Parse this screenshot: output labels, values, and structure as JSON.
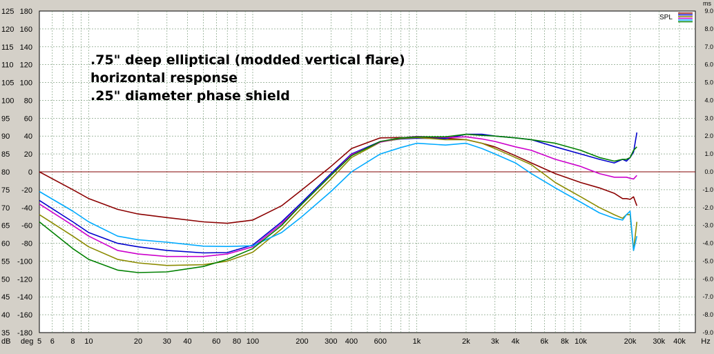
{
  "chart_data": {
    "type": "line",
    "title": "",
    "annotations": [
      ".75\" deep elliptical (modded vertical flare)",
      "horizontal response",
      ".25\" diameter phase shield"
    ],
    "legend": {
      "label": "SPL",
      "placement": "top-right"
    },
    "x_axis": {
      "scale": "log",
      "unit": "Hz",
      "range": [
        5,
        50000
      ],
      "ticks": [
        {
          "v": 5,
          "t": "5"
        },
        {
          "v": 6,
          "t": "6"
        },
        {
          "v": 8,
          "t": "8"
        },
        {
          "v": 10,
          "t": "10"
        },
        {
          "v": 20,
          "t": "20"
        },
        {
          "v": 30,
          "t": "30"
        },
        {
          "v": 40,
          "t": "40"
        },
        {
          "v": 60,
          "t": "60"
        },
        {
          "v": 80,
          "t": "80"
        },
        {
          "v": 100,
          "t": "100"
        },
        {
          "v": 200,
          "t": "200"
        },
        {
          "v": 300,
          "t": "300"
        },
        {
          "v": 400,
          "t": "400"
        },
        {
          "v": 600,
          "t": "600"
        },
        {
          "v": 1000,
          "t": "1k"
        },
        {
          "v": 2000,
          "t": "2k"
        },
        {
          "v": 3000,
          "t": "3k"
        },
        {
          "v": 4000,
          "t": "4k"
        },
        {
          "v": 6000,
          "t": "6k"
        },
        {
          "v": 8000,
          "t": "8k"
        },
        {
          "v": 10000,
          "t": "10k"
        },
        {
          "v": 20000,
          "t": "20k"
        },
        {
          "v": 30000,
          "t": "30k"
        },
        {
          "v": 40000,
          "t": "40k"
        }
      ]
    },
    "y_axis_db": {
      "unit": "dB",
      "range": [
        35,
        125
      ],
      "ticks": [
        125,
        120,
        115,
        110,
        105,
        100,
        95,
        90,
        85,
        80,
        75,
        70,
        65,
        60,
        55,
        50,
        45,
        40,
        35
      ]
    },
    "y_axis_deg": {
      "unit": "deg",
      "ticks": [
        "180",
        "160",
        "140",
        "120",
        "100",
        "80",
        "60",
        "40",
        "20",
        "0",
        "-20",
        "-40",
        "-60",
        "-80",
        "-100",
        "-120",
        "-140",
        "-160",
        "-180"
      ]
    },
    "y_axis_ms": {
      "unit": "ms",
      "ticks": [
        "9.0",
        "8.0",
        "7.0",
        "6.0",
        "5.0",
        "4.0",
        "3.0",
        "2.0",
        "1.0",
        "0.0",
        "-1.0",
        "-2.0",
        "-3.0",
        "-4.0",
        "-5.0",
        "-6.0",
        "-7.0",
        "-8.0",
        "-9.0"
      ]
    },
    "grid": true,
    "reference_line_db": 80,
    "series": [
      {
        "color": "#8b0000",
        "x": [
          5,
          8,
          10,
          15,
          20,
          30,
          50,
          70,
          100,
          150,
          200,
          300,
          400,
          600,
          800,
          1000,
          1500,
          2000,
          2500,
          3000,
          4000,
          5000,
          7000,
          10000,
          13000,
          16000,
          18000,
          19000,
          20000,
          21000,
          22000
        ],
        "y": [
          80,
          75,
          72.5,
          69.5,
          68.2,
          67.2,
          66,
          65.6,
          66.5,
          70.5,
          75,
          81.5,
          86.5,
          89.5,
          89.6,
          89.6,
          89.4,
          89,
          88,
          87,
          84.5,
          82.5,
          79.5,
          77,
          75.5,
          74,
          72.5,
          72.5,
          72.3,
          73,
          70.5
        ]
      },
      {
        "color": "#0000cc",
        "x": [
          5,
          8,
          10,
          15,
          20,
          30,
          50,
          70,
          100,
          150,
          200,
          300,
          400,
          600,
          800,
          1000,
          1500,
          2000,
          2500,
          3000,
          4000,
          5000,
          7000,
          10000,
          13000,
          16000,
          18000,
          19000,
          20000,
          21000,
          22000
        ],
        "y": [
          72,
          66,
          63,
          60,
          59,
          58,
          57.3,
          57.4,
          59.5,
          66,
          71.5,
          79.5,
          85,
          88.5,
          89.2,
          89.4,
          89.3,
          90.5,
          90.5,
          90,
          89.5,
          89,
          87,
          85,
          83.5,
          82.5,
          83.5,
          83,
          84,
          85.5,
          91
        ]
      },
      {
        "color": "#8b8b00",
        "x": [
          5,
          8,
          10,
          15,
          20,
          30,
          50,
          70,
          100,
          150,
          200,
          300,
          400,
          600,
          800,
          1000,
          1500,
          2000,
          2500,
          3000,
          4000,
          5000,
          7000,
          10000,
          13000,
          16000,
          18000,
          19000,
          20000,
          21000,
          22000
        ],
        "y": [
          68,
          62,
          59,
          55.5,
          54.5,
          53.8,
          54,
          55,
          57.5,
          64,
          70,
          78,
          84,
          88.3,
          89.3,
          89.6,
          89,
          89,
          88,
          86.5,
          84,
          82,
          77,
          73,
          70,
          68,
          67,
          68,
          68,
          58,
          66
        ]
      },
      {
        "color": "#cc00cc",
        "x": [
          5,
          8,
          10,
          15,
          20,
          30,
          50,
          70,
          100,
          150,
          200,
          300,
          400,
          600,
          800,
          1000,
          1500,
          2000,
          2500,
          3000,
          4000,
          5000,
          7000,
          10000,
          13000,
          16000,
          18000,
          19000,
          20000,
          21000,
          22000
        ],
        "y": [
          71,
          65,
          62,
          58,
          57,
          56.3,
          56.3,
          57,
          59,
          65.5,
          71,
          79,
          84.8,
          88.3,
          89.5,
          89.9,
          89.6,
          89.8,
          89.2,
          88.5,
          87,
          86,
          83.5,
          81.5,
          79.5,
          78.5,
          78.5,
          78.5,
          78.2,
          78,
          79
        ]
      },
      {
        "color": "#00aaff",
        "x": [
          5,
          8,
          10,
          15,
          20,
          30,
          50,
          70,
          100,
          150,
          200,
          300,
          400,
          600,
          800,
          1000,
          1500,
          2000,
          2500,
          3000,
          4000,
          5000,
          7000,
          10000,
          13000,
          16000,
          18000,
          19000,
          20000,
          21000,
          22000
        ],
        "y": [
          74.5,
          69,
          66,
          62,
          61,
          60.3,
          59.2,
          59.1,
          59.3,
          63,
          67.5,
          74.5,
          80,
          85,
          86.8,
          88,
          87.5,
          88,
          86.5,
          85,
          82.5,
          79.5,
          75.5,
          71.5,
          68.5,
          67,
          66.5,
          68,
          69,
          58,
          62
        ]
      },
      {
        "color": "#008000",
        "x": [
          5,
          8,
          10,
          15,
          20,
          30,
          50,
          70,
          100,
          150,
          200,
          300,
          400,
          600,
          800,
          1000,
          1500,
          2000,
          2500,
          3000,
          4000,
          5000,
          7000,
          10000,
          13000,
          16000,
          18000,
          19000,
          20000,
          21000,
          22000
        ],
        "y": [
          66,
          58.5,
          55.5,
          52.5,
          51.8,
          52,
          53.5,
          55.5,
          58.5,
          65,
          71,
          79,
          84.5,
          88.5,
          89.5,
          89.8,
          89.8,
          90.5,
          90.2,
          90,
          89.5,
          89,
          88,
          86,
          84,
          83,
          83.5,
          83.5,
          84,
          86,
          87
        ]
      }
    ]
  }
}
